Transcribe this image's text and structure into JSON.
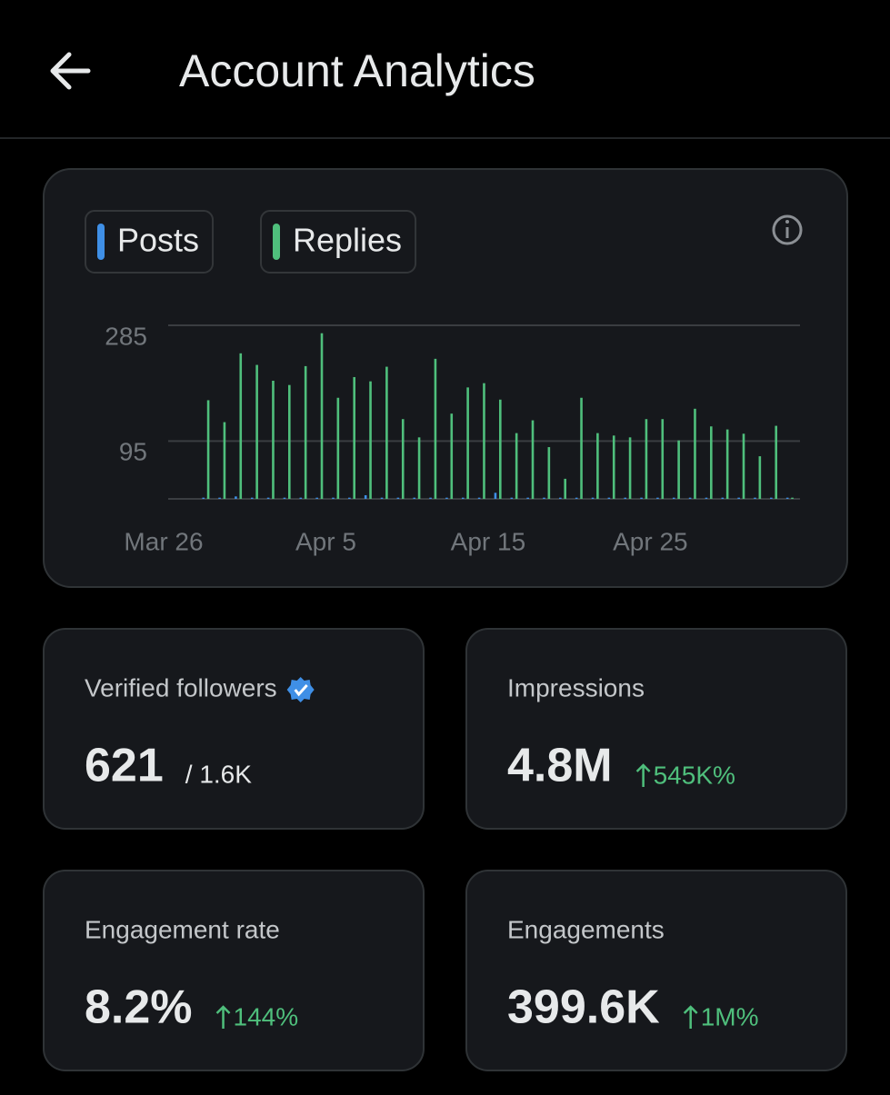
{
  "header": {
    "title": "Account Analytics"
  },
  "chart_data": {
    "type": "bar",
    "categories": [
      "Mar 26",
      null,
      null,
      null,
      null,
      null,
      null,
      null,
      null,
      null,
      "Apr 5",
      null,
      null,
      null,
      null,
      null,
      null,
      null,
      null,
      null,
      "Apr 15",
      null,
      null,
      null,
      null,
      null,
      null,
      null,
      null,
      null,
      "Apr 25",
      null,
      null,
      null,
      null,
      null,
      null,
      null,
      null
    ],
    "series": [
      {
        "name": "Posts",
        "color": "#3f8fe6",
        "values": [
          null,
          null,
          2,
          2,
          4,
          2,
          2,
          2,
          2,
          2,
          2,
          2,
          6,
          2,
          2,
          2,
          2,
          2,
          2,
          2,
          10,
          2,
          2,
          2,
          2,
          2,
          2,
          2,
          2,
          2,
          2,
          2,
          2,
          2,
          2,
          2,
          2,
          2,
          2
        ]
      },
      {
        "name": "Replies",
        "color": "#4fbf7c",
        "values": [
          null,
          null,
          162,
          126,
          239,
          220,
          194,
          187,
          218,
          272,
          166,
          200,
          193,
          217,
          131,
          101,
          230,
          140,
          183,
          190,
          163,
          108,
          129,
          85,
          33,
          166,
          108,
          104,
          101,
          131,
          131,
          96,
          148,
          119,
          114,
          107,
          70,
          120,
          2
        ]
      }
    ],
    "ylim": [
      0,
      285
    ],
    "yticks": [
      95,
      285
    ],
    "grid": true
  },
  "stats": [
    {
      "label": "Verified followers",
      "value": "621",
      "secondary": "/ 1.6K"
    },
    {
      "label": "Impressions",
      "value": "4.8M",
      "change": "545K%"
    },
    {
      "label": "Engagement rate",
      "value": "8.2%",
      "change": "144%"
    },
    {
      "label": "Engagements",
      "value": "399.6K",
      "change": "1M%"
    }
  ]
}
